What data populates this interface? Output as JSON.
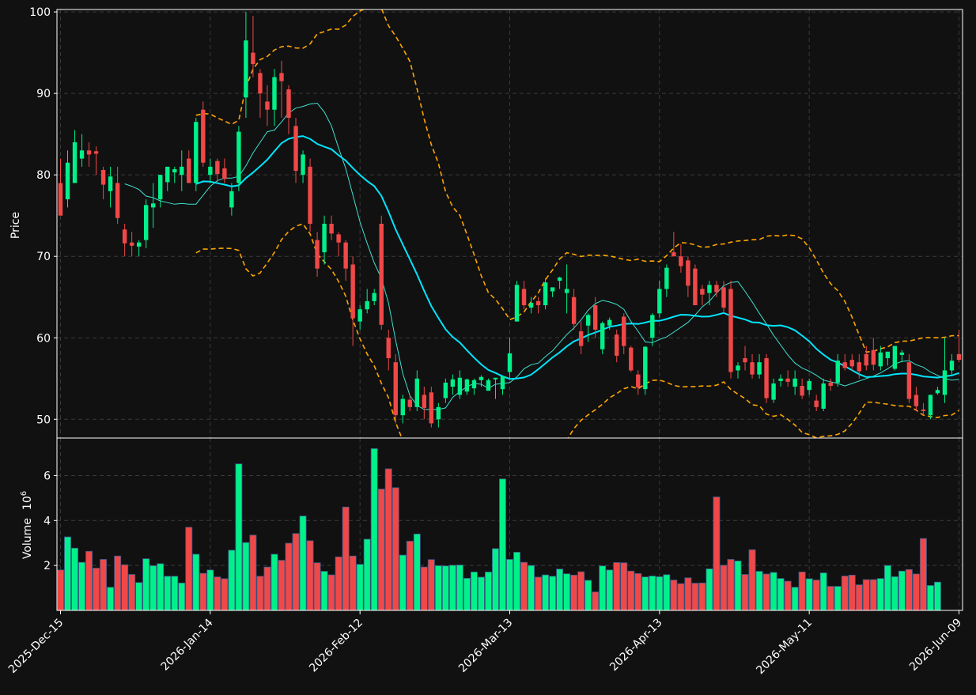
{
  "chart_data": {
    "type": "candlestick",
    "panels": [
      "price",
      "volume"
    ],
    "colors": {
      "background": "#111111",
      "grid": "#3a3a3a",
      "up": "#00f08a",
      "down": "#f04848",
      "ma_fast": "#40e0d0",
      "ma_slow": "#00e5ff",
      "bands": "#ffa500",
      "axis": "#ffffff"
    },
    "price_axis": {
      "label": "Price",
      "range": [
        47.7,
        100.3
      ],
      "ticks": [
        50,
        60,
        70,
        80,
        90,
        100
      ]
    },
    "volume_axis": {
      "label": "Volume",
      "exponent_label": "10",
      "exponent": "6",
      "range": [
        0.0,
        7.67
      ],
      "ticks": [
        2,
        4,
        6
      ]
    },
    "x_tick_labels": [
      "2025-Dec-15",
      "2026-Jan-14",
      "2026-Feb-12",
      "2026-Mar-13",
      "2026-Apr-13",
      "2026-May-11",
      "2026-Jun-09"
    ],
    "x_tick_index": [
      0,
      21,
      42,
      63,
      84,
      105,
      126
    ],
    "ohlc": [
      [
        79,
        82,
        75,
        75
      ],
      [
        77,
        83,
        76,
        81.5
      ],
      [
        79,
        85.5,
        79,
        84
      ],
      [
        82,
        85,
        81,
        83
      ],
      [
        83,
        84,
        81,
        82.5
      ],
      [
        82.9,
        83.5,
        80,
        82.6
      ],
      [
        80.6,
        81,
        77,
        78.8
      ],
      [
        78,
        81,
        76,
        79.8
      ],
      [
        79,
        81,
        74,
        74.7
      ],
      [
        73.3,
        74,
        70,
        71.6
      ],
      [
        71.7,
        73,
        70,
        71.3
      ],
      [
        71.2,
        72,
        70,
        71.7
      ],
      [
        72,
        77,
        71,
        76.3
      ],
      [
        76,
        79,
        73.5,
        76.5
      ],
      [
        77,
        80,
        76,
        80
      ],
      [
        79.1,
        81,
        78,
        81
      ],
      [
        80.3,
        81,
        79,
        80.7
      ],
      [
        80,
        83,
        78,
        81
      ],
      [
        82,
        83,
        79,
        79
      ],
      [
        79,
        87,
        78,
        86.5
      ],
      [
        88,
        89,
        81,
        81.5
      ],
      [
        80,
        82,
        79,
        81
      ],
      [
        81.7,
        82,
        79,
        80.1
      ],
      [
        80.8,
        82,
        79,
        79.5
      ],
      [
        76,
        79,
        75,
        78
      ],
      [
        79,
        86,
        78,
        85.3
      ],
      [
        89.5,
        100,
        87,
        96.5
      ],
      [
        95,
        99.5,
        92,
        93.6
      ],
      [
        92.5,
        93,
        87,
        90
      ],
      [
        89,
        91,
        86,
        88
      ],
      [
        88,
        93,
        86,
        92
      ],
      [
        92.5,
        94,
        87,
        91.5
      ],
      [
        90.5,
        91,
        85,
        87
      ],
      [
        86,
        87,
        79,
        80.5
      ],
      [
        80,
        83,
        79,
        82.5
      ],
      [
        81,
        82,
        73,
        74
      ],
      [
        72,
        73,
        67.5,
        68.5
      ],
      [
        70.5,
        75,
        69,
        74
      ],
      [
        74,
        75,
        72,
        72.8
      ],
      [
        72.7,
        73,
        70,
        71.7
      ],
      [
        71.7,
        72,
        67,
        68.5
      ],
      [
        69,
        70,
        59,
        62.4
      ],
      [
        62,
        64,
        61,
        63.5
      ],
      [
        63.5,
        66,
        63,
        64.5
      ],
      [
        64.5,
        66,
        64,
        65.5
      ],
      [
        74,
        75,
        61,
        61.6
      ],
      [
        60,
        61,
        56,
        57.5
      ],
      [
        57,
        58,
        49.5,
        50.5
      ],
      [
        50.5,
        53,
        49.5,
        52.5
      ],
      [
        52.4,
        53,
        51,
        51.5
      ],
      [
        51.5,
        56,
        51,
        55
      ],
      [
        53,
        54,
        50,
        51.4
      ],
      [
        53.3,
        54,
        49,
        49.5
      ],
      [
        50,
        52,
        49,
        51.5
      ],
      [
        52.6,
        55,
        52,
        54.5
      ],
      [
        54,
        55.5,
        53,
        54.9
      ],
      [
        53,
        56,
        52.5,
        55.1
      ],
      [
        53.4,
        55,
        53,
        54.9
      ],
      [
        53.8,
        55,
        53,
        54.8
      ],
      [
        54.8,
        55.4,
        54,
        55.2
      ],
      [
        53.5,
        55,
        54,
        54.8
      ],
      [
        54.9,
        55,
        52.5,
        55.1
      ],
      [
        53.7,
        55,
        53,
        55.3
      ],
      [
        55.8,
        60,
        55,
        58.1
      ],
      [
        62,
        67,
        62,
        66.5
      ],
      [
        66,
        67,
        63.5,
        64
      ],
      [
        63.7,
        65,
        63,
        64.3
      ],
      [
        64.5,
        65,
        63,
        64
      ],
      [
        64,
        67.3,
        63.5,
        66.8
      ],
      [
        65.7,
        66,
        65,
        66.2
      ],
      [
        67,
        67.5,
        66,
        67.4
      ],
      [
        65.5,
        69,
        63,
        66
      ],
      [
        65,
        66,
        61,
        61.7
      ],
      [
        60.8,
        62,
        58,
        59
      ],
      [
        61.5,
        63,
        59.5,
        62.8
      ],
      [
        64,
        65,
        60,
        61
      ],
      [
        58.6,
        62,
        58,
        61.8
      ],
      [
        61.5,
        62.5,
        61,
        62.2
      ],
      [
        60.4,
        61,
        57,
        57.8
      ],
      [
        62.6,
        63,
        58,
        59
      ],
      [
        58.8,
        59,
        55.8,
        56
      ],
      [
        55.5,
        56,
        53,
        53.9
      ],
      [
        53.7,
        59,
        53,
        58.9
      ],
      [
        60,
        63,
        59,
        62.8
      ],
      [
        63,
        67,
        62.5,
        66
      ],
      [
        66,
        69,
        65,
        68.6
      ],
      [
        70.5,
        73,
        70,
        70
      ],
      [
        70,
        71.5,
        68,
        68.8
      ],
      [
        69.5,
        70,
        65,
        66.4
      ],
      [
        68.5,
        69,
        64,
        64
      ],
      [
        66,
        66.5,
        64,
        65.3
      ],
      [
        65.5,
        67,
        64,
        66.5
      ],
      [
        66.5,
        67,
        65,
        65.6
      ],
      [
        66.2,
        67,
        63,
        63.7
      ],
      [
        66,
        67,
        55,
        55.8
      ],
      [
        56,
        57,
        55,
        56.6
      ],
      [
        57.5,
        59,
        56,
        57
      ],
      [
        57,
        58,
        55,
        55.5
      ],
      [
        55.5,
        58,
        55,
        57
      ],
      [
        57.5,
        58,
        52,
        52.6
      ],
      [
        52.4,
        55,
        52,
        54.4
      ],
      [
        54.7,
        55.5,
        54,
        55
      ],
      [
        55,
        56,
        54,
        54.6
      ],
      [
        54,
        56,
        53,
        55
      ],
      [
        54.1,
        55,
        52.5,
        52.9
      ],
      [
        53.6,
        55,
        53,
        54.7
      ],
      [
        52.3,
        53,
        51,
        51.5
      ],
      [
        51.3,
        55,
        51,
        54.4
      ],
      [
        54.5,
        55,
        53.5,
        54.1
      ],
      [
        54.5,
        58,
        54,
        57.2
      ],
      [
        57,
        58,
        56,
        56.3
      ],
      [
        57.3,
        58,
        56,
        56.5
      ],
      [
        57,
        58,
        55,
        55.9
      ],
      [
        58,
        59,
        56,
        56.6
      ],
      [
        58.5,
        60,
        56,
        56.7
      ],
      [
        56.5,
        59,
        56,
        58.2
      ],
      [
        57.5,
        58,
        56.6,
        58.3
      ],
      [
        56.2,
        59,
        56,
        59
      ],
      [
        57.9,
        58.5,
        57,
        58.2
      ],
      [
        57,
        58,
        52,
        52.5
      ],
      [
        53,
        54,
        51,
        51.6
      ],
      [
        51.2,
        52,
        50.5,
        51
      ],
      [
        50.5,
        53,
        50,
        53
      ],
      [
        53.2,
        54,
        53,
        53.6
      ],
      [
        53,
        60,
        52,
        56
      ],
      [
        56,
        58,
        55.5,
        57.2
      ],
      [
        58,
        61,
        57,
        57.3
      ]
    ],
    "volume": [
      1.8,
      3.27,
      2.77,
      2.14,
      2.63,
      1.88,
      2.27,
      1.03,
      2.42,
      2.03,
      1.6,
      1.24,
      2.3,
      1.99,
      2.08,
      1.52,
      1.52,
      1.22,
      3.7,
      2.5,
      1.65,
      1.8,
      1.49,
      1.41,
      2.68,
      6.52,
      3.02,
      3.35,
      1.52,
      1.93,
      2.5,
      2.23,
      2.99,
      3.42,
      4.2,
      3.1,
      2.12,
      1.74,
      1.58,
      2.38,
      4.6,
      2.42,
      2.05,
      3.17,
      7.2,
      5.4,
      6.3,
      5.46,
      2.46,
      3.08,
      3.4,
      1.93,
      2.26,
      1.99,
      1.98,
      2.01,
      2.02,
      1.43,
      1.71,
      1.48,
      1.71,
      2.75,
      5.85,
      2.27,
      2.59,
      2.14,
      2.0,
      1.48,
      1.58,
      1.52,
      1.84,
      1.63,
      1.57,
      1.72,
      1.34,
      0.82,
      1.98,
      1.8,
      2.13,
      2.12,
      1.75,
      1.64,
      1.49,
      1.53,
      1.5,
      1.59,
      1.35,
      1.19,
      1.45,
      1.21,
      1.22,
      1.85,
      5.05,
      2.01,
      2.27,
      2.2,
      1.6,
      2.7,
      1.74,
      1.62,
      1.69,
      1.42,
      1.3,
      1.03,
      1.71,
      1.41,
      1.35,
      1.67,
      1.07,
      1.07,
      1.53,
      1.57,
      1.14,
      1.37,
      1.37,
      1.42,
      2.0,
      1.5,
      1.75,
      1.82,
      1.62,
      3.2,
      1.11,
      1.26
    ],
    "ma_fast": [
      null,
      null,
      null,
      null,
      null,
      null,
      null,
      null,
      null,
      78.9,
      78.6,
      78.2,
      77.4,
      77.2,
      76.8,
      76.6,
      76.4,
      76.5,
      76.4,
      76.4,
      77.5,
      78.6,
      79.3,
      79.6,
      79.6,
      79.8,
      81.1,
      82.7,
      84,
      85.3,
      85.5,
      86.5,
      87.6,
      88.2,
      88.4,
      88.7,
      88.8,
      87.7,
      86,
      83.3,
      80.8,
      77.5,
      74.2,
      71.6,
      69.2,
      67.3,
      64.3,
      59.7,
      55.6,
      52.9,
      51.7,
      51.2,
      51.2,
      51.2,
      51.4,
      52.7,
      53.4,
      54,
      54.4,
      54.3,
      53.8,
      54.3,
      54.4,
      54.5,
      55.2,
      56.2,
      56.7,
      56.9,
      57.7,
      58.4,
      59.4,
      60.4,
      61.2,
      62.2,
      63.4,
      64.2,
      64.6,
      64.4,
      64.1,
      63.5,
      62,
      60.8,
      59.5,
      59.4,
      59.8,
      60.1,
      60.7,
      61.3,
      61.9,
      62.8,
      63.8,
      64.5,
      65.5,
      66.4,
      66.8,
      66.9,
      65.7,
      64.4,
      63,
      61.7,
      60.3,
      59.1,
      57.9,
      56.9,
      56.3,
      55.9,
      55.4,
      54.8,
      54.6,
      54.4,
      54.1,
      54.4,
      54.7,
      55,
      55.3,
      55.7,
      56.2,
      56.8,
      57.1,
      57.2,
      56.7,
      56.4,
      55.8,
      55.4,
      55,
      54.8,
      54.9
    ]
  }
}
